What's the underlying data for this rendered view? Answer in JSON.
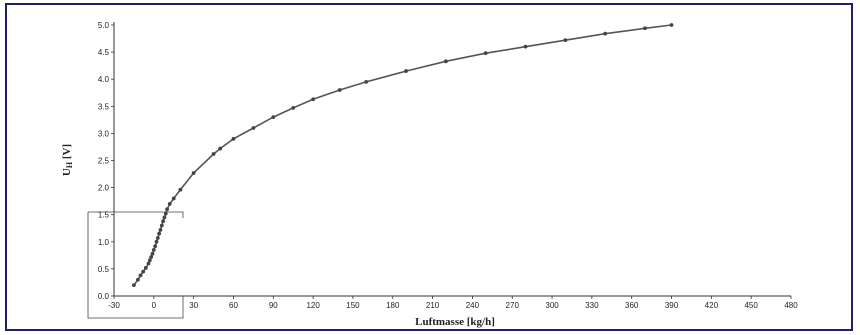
{
  "chart_data": {
    "type": "line",
    "title": "",
    "xlabel": "Luftmasse [kg/h]",
    "ylabel": "U",
    "ylabel_sub": "H",
    "ylabel_unit": " [V]",
    "xlim": [
      -30,
      480
    ],
    "ylim": [
      0,
      5
    ],
    "xticks": [
      -30,
      0,
      30,
      60,
      90,
      120,
      150,
      180,
      210,
      240,
      270,
      300,
      330,
      360,
      390,
      420,
      450,
      480
    ],
    "yticks": [
      "0.0",
      "0.5",
      "1.0",
      "1.5",
      "2.0",
      "2.5",
      "3.0",
      "3.5",
      "4.0",
      "4.5",
      "5.0"
    ],
    "grid": false,
    "series_color": "#555555",
    "series": [
      {
        "x": [
          -15,
          -12,
          -10,
          -8,
          -6,
          -4,
          -3,
          -2,
          -1,
          0,
          1,
          2,
          3,
          4,
          5,
          6,
          7,
          8,
          9,
          10,
          12,
          15,
          20,
          30,
          45,
          50,
          60,
          75,
          90,
          105,
          120,
          140,
          160,
          190,
          220,
          250,
          280,
          310,
          340,
          370,
          390
        ],
        "y": [
          0.2,
          0.3,
          0.38,
          0.45,
          0.52,
          0.6,
          0.66,
          0.72,
          0.78,
          0.85,
          0.92,
          1.0,
          1.07,
          1.15,
          1.22,
          1.3,
          1.38,
          1.45,
          1.52,
          1.6,
          1.7,
          1.8,
          1.96,
          2.27,
          2.62,
          2.72,
          2.9,
          3.1,
          3.3,
          3.47,
          3.63,
          3.8,
          3.95,
          4.15,
          4.33,
          4.48,
          4.6,
          4.72,
          4.84,
          4.94,
          5.0
        ]
      }
    ]
  }
}
